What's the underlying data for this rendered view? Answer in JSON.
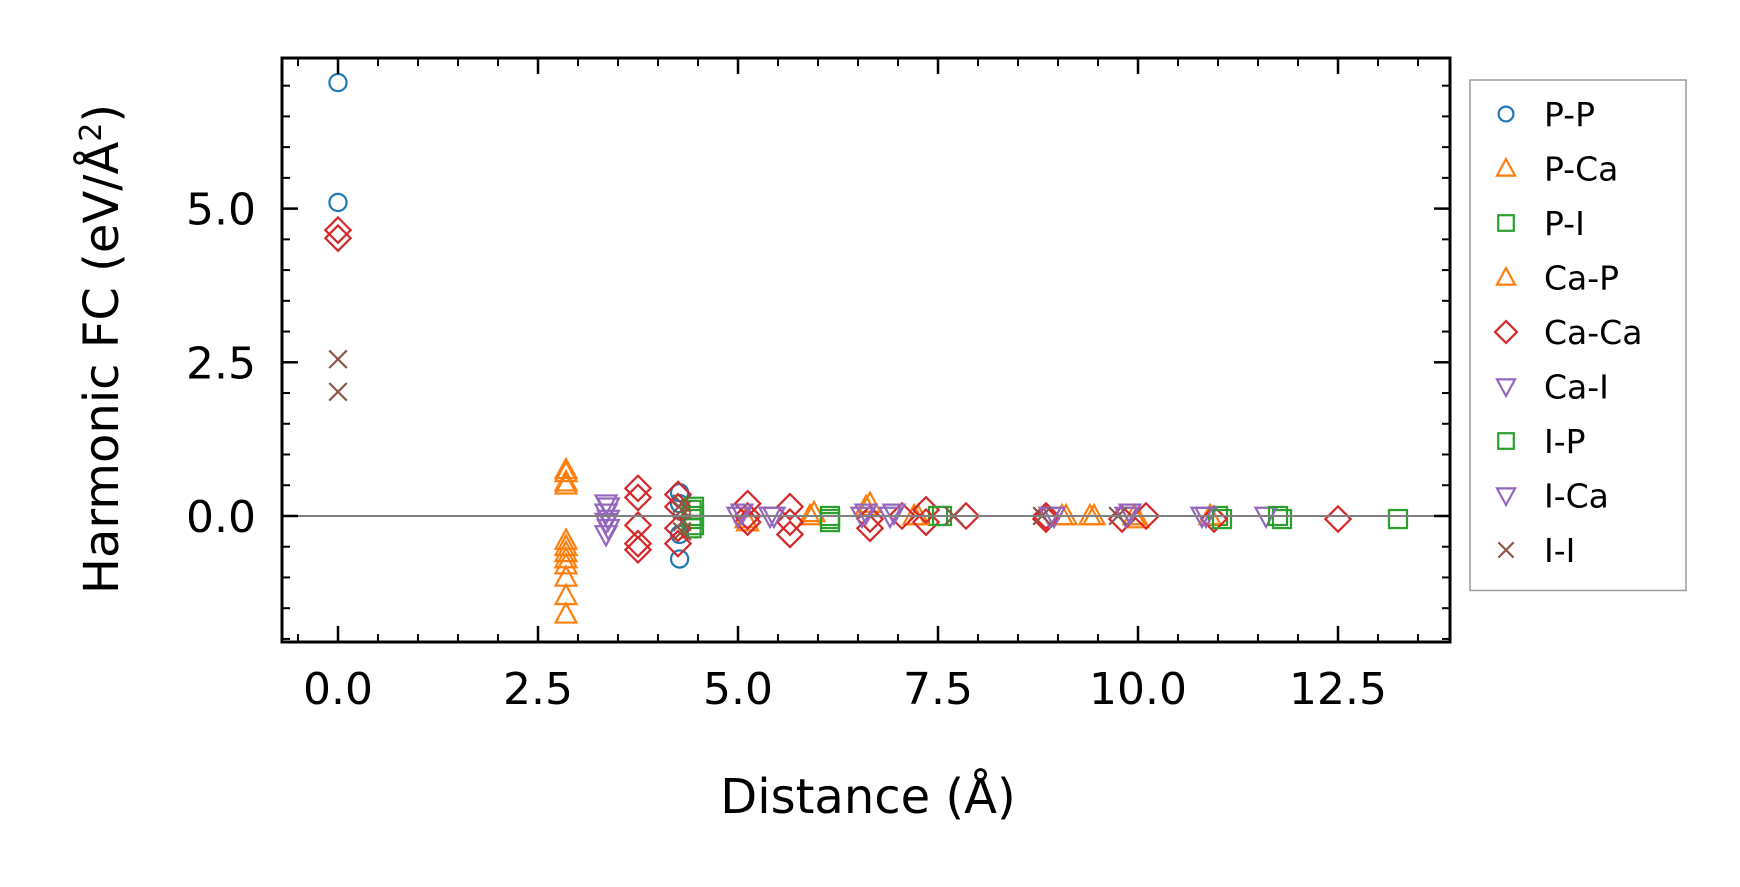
{
  "chart_data": {
    "type": "scatter",
    "xlabel": "Distance (Å)",
    "ylabel": {
      "base": "Harmonic FC (eV/Å",
      "sup": "2",
      "close": ")"
    },
    "xlim": [
      -0.7,
      13.9
    ],
    "ylim": [
      -2.05,
      7.45
    ],
    "xticks": [
      0.0,
      2.5,
      5.0,
      7.5,
      10.0,
      12.5
    ],
    "xtick_labels": [
      "0.0",
      "2.5",
      "5.0",
      "7.5",
      "10.0",
      "12.5"
    ],
    "yticks": [
      0.0,
      2.5,
      5.0
    ],
    "ytick_labels": [
      "0.0",
      "2.5",
      "5.0"
    ],
    "x_minor_step": 0.5,
    "y_minor_step": 0.5,
    "zero_line": true,
    "grid": false,
    "legend_position": "outside-right",
    "series": [
      {
        "name": "P-P",
        "marker": "circle",
        "color": "#1f77b4",
        "points": [
          [
            0.0,
            7.05
          ],
          [
            0.0,
            5.1
          ],
          [
            4.27,
            0.38
          ],
          [
            4.27,
            0.2
          ],
          [
            4.27,
            -0.3
          ],
          [
            4.27,
            -0.7
          ]
        ]
      },
      {
        "name": "P-Ca",
        "marker": "triangle-up",
        "color": "#ff7f0e",
        "points": [
          [
            2.85,
            0.75
          ],
          [
            2.85,
            0.55
          ],
          [
            2.85,
            -0.4
          ],
          [
            2.85,
            -0.6
          ],
          [
            2.85,
            -0.8
          ],
          [
            2.85,
            -1.3
          ],
          [
            2.85,
            -1.6
          ],
          [
            5.12,
            -0.1
          ],
          [
            5.95,
            0.05
          ],
          [
            6.65,
            0.2
          ],
          [
            7.2,
            0.0
          ],
          [
            9.1,
            0.0
          ],
          [
            9.45,
            0.0
          ],
          [
            10.0,
            -0.05
          ]
        ]
      },
      {
        "name": "P-I",
        "marker": "square",
        "color": "#2ca02c",
        "points": [
          [
            4.42,
            0.1
          ],
          [
            4.42,
            -0.05
          ],
          [
            4.42,
            -0.2
          ],
          [
            6.15,
            0.0
          ],
          [
            6.15,
            -0.1
          ],
          [
            7.5,
            0.0
          ],
          [
            11.0,
            0.0
          ],
          [
            11.8,
            -0.05
          ],
          [
            13.25,
            -0.05
          ]
        ]
      },
      {
        "name": "Ca-P",
        "marker": "triangle-up",
        "color": "#ff7f0e",
        "points": [
          [
            2.85,
            0.7
          ],
          [
            2.85,
            0.5
          ],
          [
            2.85,
            -0.5
          ],
          [
            2.85,
            -0.7
          ],
          [
            2.85,
            -1.0
          ],
          [
            5.1,
            -0.05
          ],
          [
            5.9,
            0.0
          ],
          [
            6.6,
            0.15
          ],
          [
            7.25,
            0.0
          ],
          [
            9.05,
            0.0
          ],
          [
            9.4,
            0.0
          ],
          [
            9.95,
            0.0
          ],
          [
            10.9,
            0.0
          ]
        ]
      },
      {
        "name": "Ca-Ca",
        "marker": "diamond",
        "color": "#d62728",
        "points": [
          [
            0.0,
            4.65
          ],
          [
            0.0,
            4.52
          ],
          [
            3.75,
            0.45
          ],
          [
            3.75,
            0.3
          ],
          [
            3.75,
            -0.15
          ],
          [
            3.75,
            -0.45
          ],
          [
            3.75,
            -0.55
          ],
          [
            4.25,
            0.35
          ],
          [
            4.25,
            0.15
          ],
          [
            4.25,
            -0.2
          ],
          [
            4.25,
            -0.45
          ],
          [
            5.12,
            0.2
          ],
          [
            5.12,
            0.0
          ],
          [
            5.12,
            -0.1
          ],
          [
            5.65,
            0.15
          ],
          [
            5.65,
            -0.1
          ],
          [
            5.65,
            -0.3
          ],
          [
            6.65,
            -0.05
          ],
          [
            6.65,
            -0.2
          ],
          [
            7.05,
            0.0
          ],
          [
            7.35,
            0.1
          ],
          [
            7.35,
            -0.1
          ],
          [
            7.85,
            0.0
          ],
          [
            8.85,
            0.0
          ],
          [
            8.85,
            -0.05
          ],
          [
            10.1,
            0.0
          ],
          [
            9.8,
            -0.05
          ],
          [
            10.95,
            -0.05
          ],
          [
            12.5,
            -0.05
          ]
        ]
      },
      {
        "name": "Ca-I",
        "marker": "triangle-down",
        "color": "#9467bd",
        "points": [
          [
            3.35,
            0.2
          ],
          [
            3.35,
            0.05
          ],
          [
            3.35,
            -0.1
          ],
          [
            3.35,
            -0.3
          ],
          [
            5.05,
            0.05
          ],
          [
            5.4,
            0.0
          ],
          [
            6.6,
            0.05
          ],
          [
            6.9,
            0.0
          ],
          [
            8.9,
            0.0
          ],
          [
            9.85,
            0.0
          ],
          [
            10.85,
            0.0
          ],
          [
            11.6,
            0.0
          ]
        ]
      },
      {
        "name": "I-P",
        "marker": "square",
        "color": "#2ca02c",
        "points": [
          [
            4.45,
            0.15
          ],
          [
            4.45,
            0.0
          ],
          [
            4.45,
            -0.15
          ],
          [
            6.15,
            -0.05
          ],
          [
            7.55,
            0.0
          ],
          [
            11.05,
            -0.05
          ],
          [
            11.75,
            0.0
          ]
        ]
      },
      {
        "name": "I-Ca",
        "marker": "triangle-down",
        "color": "#9467bd",
        "points": [
          [
            3.38,
            0.15
          ],
          [
            3.38,
            -0.05
          ],
          [
            3.38,
            -0.2
          ],
          [
            5.0,
            0.0
          ],
          [
            5.45,
            0.0
          ],
          [
            6.55,
            0.0
          ],
          [
            6.95,
            0.05
          ],
          [
            8.95,
            0.0
          ],
          [
            9.9,
            0.05
          ],
          [
            10.8,
            0.0
          ]
        ]
      },
      {
        "name": "I-I",
        "marker": "x",
        "color": "#8c564b",
        "points": [
          [
            0.0,
            2.55
          ],
          [
            0.0,
            2.02
          ],
          [
            4.3,
            0.1
          ],
          [
            4.3,
            -0.1
          ],
          [
            4.3,
            -0.25
          ],
          [
            4.3,
            0.2
          ],
          [
            7.7,
            0.0
          ],
          [
            8.8,
            0.0
          ],
          [
            9.75,
            0.0
          ]
        ]
      }
    ]
  }
}
